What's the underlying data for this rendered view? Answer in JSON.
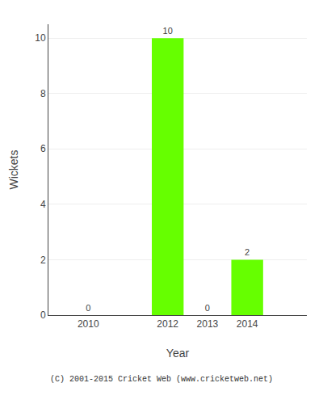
{
  "chart_data": {
    "type": "bar",
    "x": [
      2010,
      2012,
      2013,
      2014
    ],
    "values": [
      0,
      10,
      0,
      2
    ],
    "color": "#66ff00",
    "xlabel": "Year",
    "ylabel": "Wickets",
    "xlim": [
      2009.0,
      2015.5
    ],
    "xticks": [
      2010,
      2012,
      2013,
      2014
    ],
    "ylim": [
      0,
      10.5
    ],
    "yticks": [
      0,
      2,
      4,
      6,
      8,
      10
    ],
    "grid": true,
    "data_labels": true,
    "annotations": [
      "(C) 2001-2015 Cricket Web (www.cricketweb.net)"
    ]
  }
}
